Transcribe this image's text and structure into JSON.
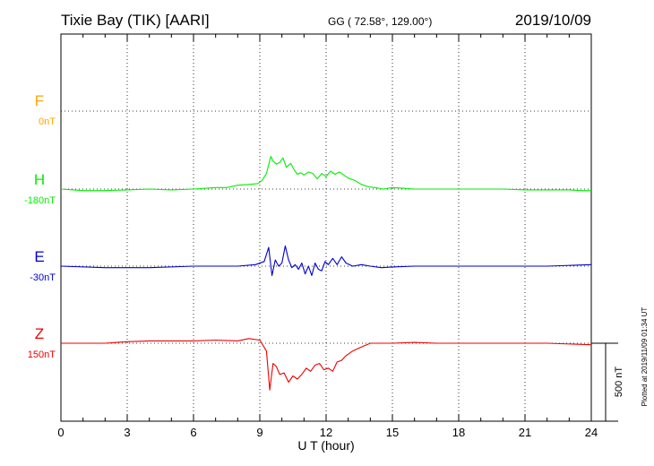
{
  "header": {
    "station": "Tixie Bay (TIK)  [AARI]",
    "coords": "GG ( 72.58°, 129.00°)",
    "date": "2019/10/09"
  },
  "side_note": "Plotted at 2019/11/09 01:34 UT",
  "scale_label": "500 nT",
  "chart_data": {
    "type": "line",
    "title": "Tixie Bay (TIK)  [AARI]",
    "xlabel": "U T (hour)",
    "ylabel": "",
    "xlim": [
      0,
      24
    ],
    "x_ticks": [
      "0",
      "3",
      "6",
      "9",
      "12",
      "15",
      "18",
      "21",
      "24"
    ],
    "grid": true,
    "scale_bar_nT": 500,
    "series": [
      {
        "name": "F",
        "baseline_label": "0nT",
        "color": "#ffa500",
        "x": [],
        "y": []
      },
      {
        "name": "H",
        "baseline_label": "-180nT",
        "color": "#00ee00",
        "x": [
          0,
          1,
          2,
          3,
          4,
          5,
          6,
          7,
          7.5,
          8,
          8.5,
          8.9,
          9.1,
          9.3,
          9.5,
          9.6,
          9.75,
          9.9,
          10.05,
          10.2,
          10.4,
          10.55,
          10.7,
          10.85,
          11.0,
          11.2,
          11.4,
          11.6,
          11.8,
          12.0,
          12.2,
          12.4,
          12.6,
          12.8,
          13.0,
          13.3,
          13.6,
          13.9,
          14.2,
          14.6,
          15,
          15.5,
          16,
          17,
          18,
          19,
          20,
          21,
          22,
          23,
          23.6,
          24
        ],
        "y": [
          0,
          -10,
          -10,
          -5,
          0,
          -5,
          0,
          10,
          10,
          25,
          30,
          35,
          55,
          100,
          210,
          180,
          160,
          170,
          200,
          140,
          165,
          125,
          95,
          105,
          90,
          110,
          100,
          65,
          100,
          80,
          115,
          95,
          110,
          90,
          70,
          55,
          30,
          15,
          10,
          0,
          10,
          5,
          0,
          0,
          0,
          0,
          0,
          -5,
          -5,
          -5,
          -10,
          -10
        ]
      },
      {
        "name": "E",
        "baseline_label": "-30nT",
        "color": "#0000cc",
        "x": [
          0,
          2,
          4,
          6,
          8,
          8.8,
          9.2,
          9.4,
          9.55,
          9.7,
          9.85,
          10.0,
          10.15,
          10.3,
          10.45,
          10.6,
          10.75,
          10.9,
          11.05,
          11.2,
          11.35,
          11.5,
          11.65,
          11.8,
          11.95,
          12.1,
          12.3,
          12.5,
          12.7,
          12.9,
          13.2,
          13.6,
          14,
          14.5,
          15,
          16,
          18,
          20,
          22,
          24
        ],
        "y": [
          0,
          -10,
          -10,
          0,
          0,
          10,
          30,
          120,
          -60,
          40,
          0,
          20,
          130,
          40,
          -10,
          10,
          -20,
          20,
          -50,
          0,
          -60,
          20,
          -20,
          -30,
          30,
          10,
          50,
          10,
          60,
          20,
          0,
          10,
          0,
          -10,
          -5,
          0,
          0,
          0,
          0,
          10
        ]
      },
      {
        "name": "Z",
        "baseline_label": "150nT",
        "color": "#ee0000",
        "x": [
          0,
          2,
          3,
          4,
          5,
          6,
          7,
          8,
          8.5,
          9.0,
          9.3,
          9.45,
          9.6,
          9.75,
          9.9,
          10.1,
          10.3,
          10.5,
          10.7,
          10.9,
          11.1,
          11.3,
          11.5,
          11.7,
          11.9,
          12.1,
          12.3,
          12.5,
          12.7,
          12.9,
          13.2,
          13.5,
          14,
          15,
          16,
          17,
          18,
          20,
          22,
          24
        ],
        "y": [
          0,
          0,
          10,
          15,
          15,
          15,
          20,
          15,
          30,
          20,
          -50,
          -300,
          -130,
          -150,
          -200,
          -190,
          -250,
          -210,
          -230,
          -200,
          -160,
          -180,
          -140,
          -130,
          -170,
          -160,
          -180,
          -120,
          -110,
          -80,
          -50,
          -30,
          0,
          0,
          5,
          0,
          0,
          0,
          0,
          -10
        ]
      }
    ]
  }
}
